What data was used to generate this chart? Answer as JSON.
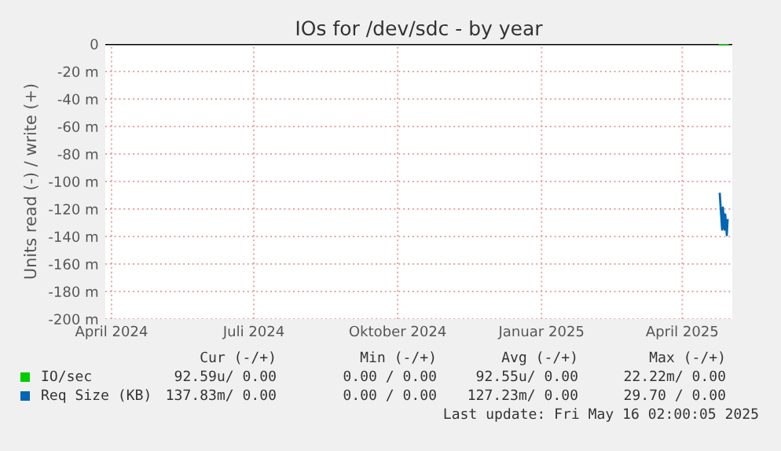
{
  "chart_data": {
    "type": "line",
    "title": "IOs for /dev/sdc - by year",
    "ylabel": "Units read (-) / write (+)",
    "xlim": [
      "2024-03-28",
      "2025-05-03"
    ],
    "xticks": [
      {
        "value": "2024-04-01",
        "label": "April 2024"
      },
      {
        "value": "2024-07-01",
        "label": "Juli 2024"
      },
      {
        "value": "2024-10-01",
        "label": "Oktober 2024"
      },
      {
        "value": "2025-01-01",
        "label": "Januar 2025"
      },
      {
        "value": "2025-04-01",
        "label": "April 2025"
      }
    ],
    "ylim": [
      -200,
      0
    ],
    "yticks": [
      0,
      {
        "value": -20,
        "label": "-20 m"
      },
      {
        "value": -40,
        "label": "-40 m"
      },
      {
        "value": -60,
        "label": "-60 m"
      },
      {
        "value": -80,
        "label": "-80 m"
      },
      {
        "value": -100,
        "label": "-100 m"
      },
      {
        "value": -120,
        "label": "-120 m"
      },
      {
        "value": -140,
        "label": "-140 m"
      },
      {
        "value": -160,
        "label": "-160 m"
      },
      {
        "value": -180,
        "label": "-180 m"
      },
      {
        "value": -200,
        "label": "-200 m"
      }
    ],
    "grid": true,
    "legend": "bottom",
    "ref_lines": [
      {
        "axis": "y",
        "value": 0,
        "color": "#000000"
      }
    ],
    "series": [
      {
        "name": "IO/sec",
        "color": "#00cc00",
        "x": [
          "2025-04-25",
          "2025-04-30"
        ],
        "values": [
          0,
          0
        ]
      },
      {
        "name": "Req Size (KB)",
        "color": "#0066b3",
        "x": [
          "2025-04-25",
          "2025-04-26T12:00",
          "2025-04-27",
          "2025-04-28",
          "2025-04-28T12:00",
          "2025-04-29T12:00",
          "2025-04-30"
        ],
        "values": [
          -109,
          -135,
          -119,
          -135,
          -124,
          -139,
          -128
        ]
      }
    ],
    "annotations": [
      "Cur (-/+)",
      "Min (-/+)",
      "Avg (-/+)",
      "Max (-/+)",
      "92.59u/ 0.00",
      "0.00 / 0.00",
      "92.55u/ 0.00",
      "22.22m/ 0.00",
      "137.83m/ 0.00",
      "0.00 / 0.00",
      "127.23m/ 0.00",
      "29.70 / 0.00",
      "Last update: Fri May 16 02:00:05 2025"
    ]
  }
}
